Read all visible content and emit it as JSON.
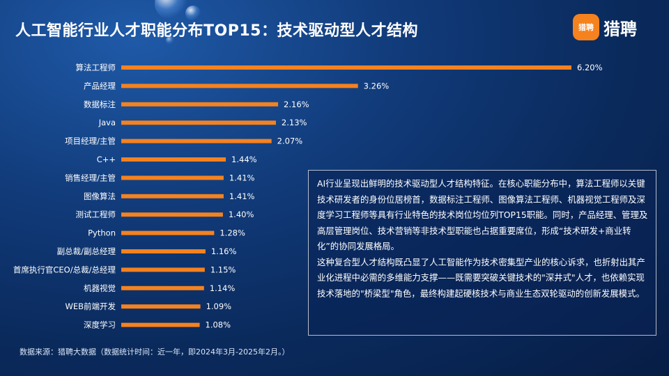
{
  "header": {
    "title": "人工智能行业人才职能分布TOP15：技术驱动型人才结构",
    "logo_badge": "猎聘",
    "logo_text": "猎聘"
  },
  "colors": {
    "bar": "#f5821f",
    "text": "#ffffff",
    "background": "#0a2a5c"
  },
  "chart_data": {
    "type": "bar",
    "orientation": "horizontal",
    "categories": [
      "算法工程师",
      "产品经理",
      "数据标注",
      "Java",
      "项目经理/主管",
      "C++",
      "销售经理/主管",
      "图像算法",
      "测试工程师",
      "Python",
      "副总裁/副总经理",
      "首席执行官CEO/总裁/总经理",
      "机器视觉",
      "WEB前端开发",
      "深度学习"
    ],
    "values": [
      6.2,
      3.26,
      2.16,
      2.13,
      2.07,
      1.44,
      1.41,
      1.41,
      1.4,
      1.28,
      1.16,
      1.15,
      1.14,
      1.09,
      1.08
    ],
    "value_labels": [
      "6.20%",
      "3.26%",
      "2.16%",
      "2.13%",
      "2.07%",
      "1.44%",
      "1.41%",
      "1.41%",
      "1.40%",
      "1.28%",
      "1.16%",
      "1.15%",
      "1.14%",
      "1.09%",
      "1.08%"
    ],
    "title": "",
    "xlabel": "",
    "ylabel": "",
    "xlim": [
      0,
      6.2
    ],
    "grid": false,
    "legend": "none"
  },
  "info": {
    "paragraphs": [
      "AI行业呈现出鲜明的技术驱动型人才结构特征。在核心职能分布中，算法工程师以关键技术研发者的身份位居榜首，数据标注工程师、图像算法工程师、机器视觉工程师及深度学习工程师等具有行业特色的技术岗位均位列TOP15职能。同时，产品经理、管理及高层管理岗位、技术营销等非技术型职能也占据重要席位，形成“技术研发+商业转化”的协同发展格局。",
      "这种复合型人才结构既凸显了人工智能作为技术密集型产业的核心诉求，也折射出其产业化进程中必需的多维能力支撑——既需要突破关键技术的\"深井式\"人才，也依赖实现技术落地的\"桥梁型\"角色，最终构建起硬核技术与商业生态双轮驱动的创新发展模式。"
    ]
  },
  "footer": {
    "source": "数据来源：猎聘大数据（数据统计时间：近一年，即2024年3月-2025年2月。）"
  }
}
